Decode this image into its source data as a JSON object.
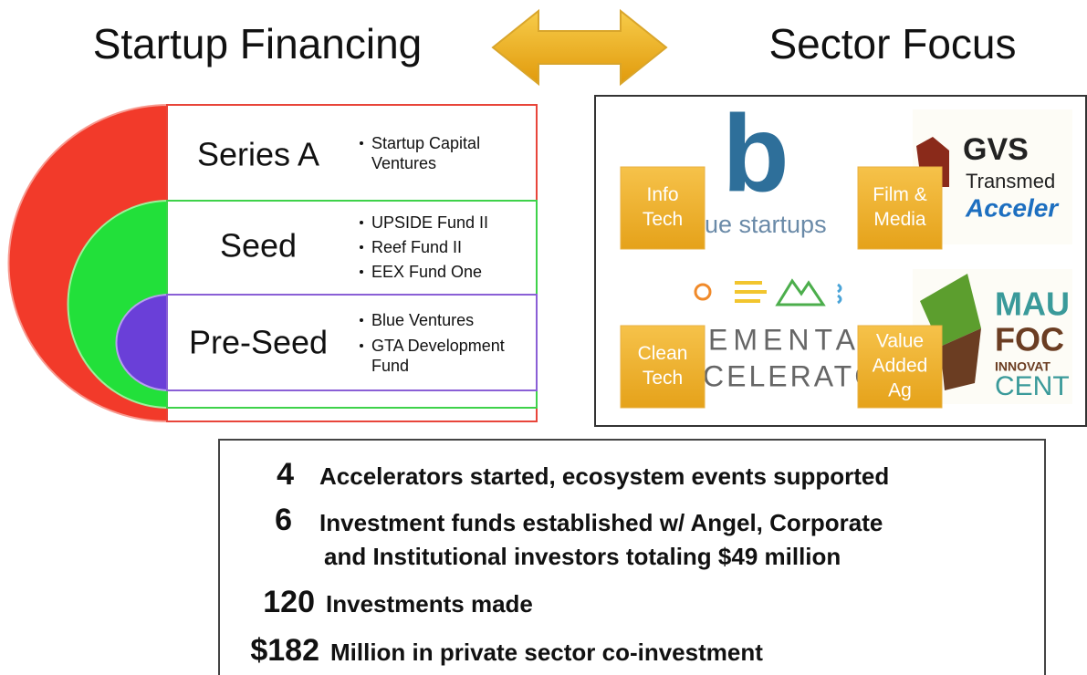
{
  "header": {
    "left_title": "Startup Financing",
    "right_title": "Sector Focus"
  },
  "stages": [
    {
      "label": "Series A",
      "items": [
        [
          "Startup Capital",
          "Ventures"
        ]
      ]
    },
    {
      "label": "Seed",
      "items": [
        [
          "UPSIDE Fund II"
        ],
        [
          "Reef Fund II"
        ],
        [
          "EEX Fund One"
        ]
      ]
    },
    {
      "label": "Pre-Seed",
      "items": [
        [
          "Blue Ventures"
        ],
        [
          "GTA Development",
          "Fund"
        ]
      ]
    }
  ],
  "sectors": [
    {
      "lines": [
        "Info",
        "Tech"
      ]
    },
    {
      "lines": [
        "Film &",
        "Media"
      ]
    },
    {
      "lines": [
        "Clean",
        "Tech"
      ]
    },
    {
      "lines": [
        "Value",
        "Added",
        "Ag"
      ]
    }
  ],
  "logos": {
    "blue_startups": {
      "mark": "b",
      "text": "ue startups"
    },
    "gvs": {
      "lines": [
        "GVS",
        "Transmed",
        "Acceler"
      ]
    },
    "elemental": {
      "lines": [
        "EMENTA",
        "CELERATC"
      ]
    },
    "maui_food": {
      "lines": [
        "MAU",
        "FOC",
        "INNOVAT",
        "CENT"
      ]
    }
  },
  "stats": [
    {
      "number": "4",
      "lines": [
        "Accelerators started, ecosystem events supported"
      ]
    },
    {
      "number": "6",
      "lines": [
        "Investment funds established w/ Angel, Corporate",
        "and Institutional investors totaling $49 million"
      ]
    },
    {
      "number": "120",
      "lines": [
        "Investments made"
      ]
    },
    {
      "number": "$182",
      "lines": [
        "Million in private sector co-investment"
      ]
    }
  ]
}
